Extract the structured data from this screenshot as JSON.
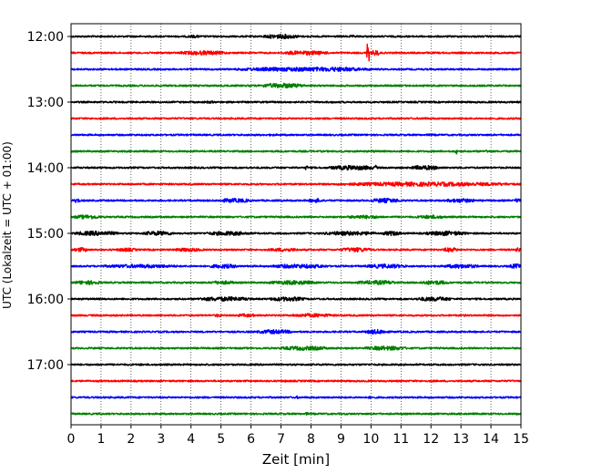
{
  "chart_data": {
    "type": "line",
    "title": "",
    "xlabel": "Zeit  [min]",
    "ylabel": "UTC (Lokalzeit = UTC + 01:00)",
    "xlim": [
      0,
      15
    ],
    "x_ticks": [
      "0",
      "1",
      "2",
      "3",
      "4",
      "5",
      "6",
      "7",
      "8",
      "9",
      "10",
      "11",
      "12",
      "13",
      "14",
      "15"
    ],
    "y_ticks": [
      "12:00",
      "13:00",
      "14:00",
      "15:00",
      "16:00",
      "17:00"
    ],
    "grid": {
      "x": "dotted",
      "y": false
    },
    "trace_colors": [
      "#000000",
      "#ff0000",
      "#0000ff",
      "#008000"
    ],
    "traces": [
      {
        "start": "12:00",
        "events": [
          [
            6.4,
            7.6,
            2.5
          ],
          [
            3.8,
            4.4,
            1.5
          ],
          [
            9.2,
            9.6,
            1.3
          ]
        ]
      },
      {
        "start": "12:15",
        "events": [
          [
            3.6,
            5.2,
            2.3
          ],
          [
            7.0,
            8.6,
            2.3
          ],
          [
            9.85,
            9.95,
            12.0
          ],
          [
            10.0,
            10.3,
            3.0
          ]
        ]
      },
      {
        "start": "12:30",
        "events": [
          [
            5.5,
            10.0,
            2.3
          ],
          [
            8.0,
            9.6,
            2.5
          ]
        ]
      },
      {
        "start": "12:45",
        "events": [
          [
            6.3,
            7.8,
            2.6
          ],
          [
            0.3,
            15.0,
            0.9
          ]
        ]
      },
      {
        "start": "13:00",
        "events": [
          [
            4.4,
            4.8,
            1.4
          ],
          [
            8.6,
            8.8,
            1.2
          ]
        ]
      },
      {
        "start": "13:15",
        "events": [
          [
            11.6,
            11.9,
            1.3
          ]
        ]
      },
      {
        "start": "13:30",
        "events": [
          [
            6.6,
            6.8,
            1.4
          ],
          [
            11.9,
            12.1,
            1.3
          ]
        ]
      },
      {
        "start": "13:45",
        "events": [
          [
            12.8,
            12.9,
            3.0
          ],
          [
            13.8,
            13.9,
            2.0
          ],
          [
            10.0,
            10.2,
            1.3
          ]
        ]
      },
      {
        "start": "14:00",
        "events": [
          [
            7.8,
            7.9,
            2.5
          ],
          [
            8.6,
            10.2,
            2.5
          ],
          [
            10.1,
            10.2,
            2.8
          ],
          [
            11.3,
            12.3,
            2.5
          ]
        ]
      },
      {
        "start": "14:15",
        "events": [
          [
            8.8,
            14.8,
            2.3
          ],
          [
            2.2,
            2.3,
            1.5
          ]
        ]
      },
      {
        "start": "14:30",
        "events": [
          [
            0.1,
            0.3,
            2.5
          ],
          [
            4.9,
            6.0,
            2.3
          ],
          [
            7.9,
            8.4,
            2.3
          ],
          [
            10.0,
            11.0,
            2.5
          ],
          [
            12.5,
            13.5,
            2.3
          ],
          [
            14.8,
            15.0,
            2.5
          ]
        ]
      },
      {
        "start": "14:45",
        "events": [
          [
            0.1,
            1.0,
            2.3
          ],
          [
            9.2,
            10.4,
            2.0
          ],
          [
            11.5,
            12.5,
            2.0
          ]
        ]
      },
      {
        "start": "15:00",
        "events": [
          [
            0.1,
            1.6,
            2.5
          ],
          [
            2.4,
            3.4,
            2.5
          ],
          [
            4.5,
            6.0,
            2.3
          ],
          [
            8.4,
            10.2,
            2.3
          ],
          [
            10.4,
            11.0,
            2.5
          ],
          [
            11.8,
            13.2,
            2.5
          ]
        ]
      },
      {
        "start": "15:15",
        "events": [
          [
            0.1,
            0.6,
            2.3
          ],
          [
            1.5,
            2.2,
            2.0
          ],
          [
            3.4,
            4.4,
            2.0
          ],
          [
            6.6,
            7.6,
            2.0
          ],
          [
            9.0,
            10.0,
            2.5
          ],
          [
            12.4,
            12.9,
            2.5
          ],
          [
            14.8,
            15.0,
            2.5
          ]
        ]
      },
      {
        "start": "15:30",
        "events": [
          [
            1.0,
            3.6,
            2.0
          ],
          [
            4.6,
            5.6,
            2.3
          ],
          [
            6.6,
            8.6,
            2.3
          ],
          [
            9.8,
            11.2,
            2.3
          ],
          [
            12.4,
            13.6,
            2.3
          ],
          [
            14.6,
            15.0,
            2.5
          ]
        ]
      },
      {
        "start": "15:45",
        "events": [
          [
            0.1,
            1.0,
            2.3
          ],
          [
            4.6,
            5.5,
            2.0
          ],
          [
            6.6,
            8.2,
            2.3
          ],
          [
            9.5,
            10.9,
            2.3
          ],
          [
            11.6,
            12.6,
            2.3
          ]
        ]
      },
      {
        "start": "16:00",
        "events": [
          [
            4.2,
            6.0,
            2.4
          ],
          [
            6.6,
            7.8,
            2.4
          ],
          [
            11.5,
            12.7,
            2.4
          ]
        ]
      },
      {
        "start": "16:15",
        "events": [
          [
            4.8,
            5.0,
            2.0
          ],
          [
            5.5,
            6.2,
            1.8
          ],
          [
            7.3,
            8.8,
            2.0
          ]
        ]
      },
      {
        "start": "16:30",
        "events": [
          [
            6.2,
            7.4,
            2.3
          ],
          [
            9.8,
            10.6,
            2.5
          ]
        ]
      },
      {
        "start": "16:45",
        "events": [
          [
            7.0,
            8.6,
            2.3
          ],
          [
            9.8,
            11.2,
            2.3
          ]
        ]
      },
      {
        "start": "17:00",
        "events": [
          [
            2.2,
            2.4,
            1.2
          ]
        ]
      },
      {
        "start": "17:15",
        "events": [
          [
            7.1,
            7.2,
            1.3
          ]
        ]
      },
      {
        "start": "17:30",
        "events": [
          [
            7.5,
            7.6,
            1.6
          ],
          [
            9.9,
            10.0,
            1.4
          ]
        ]
      },
      {
        "start": "17:45",
        "events": [
          [
            7.8,
            7.9,
            1.6
          ],
          [
            14.8,
            15.0,
            1.2
          ]
        ]
      }
    ]
  }
}
